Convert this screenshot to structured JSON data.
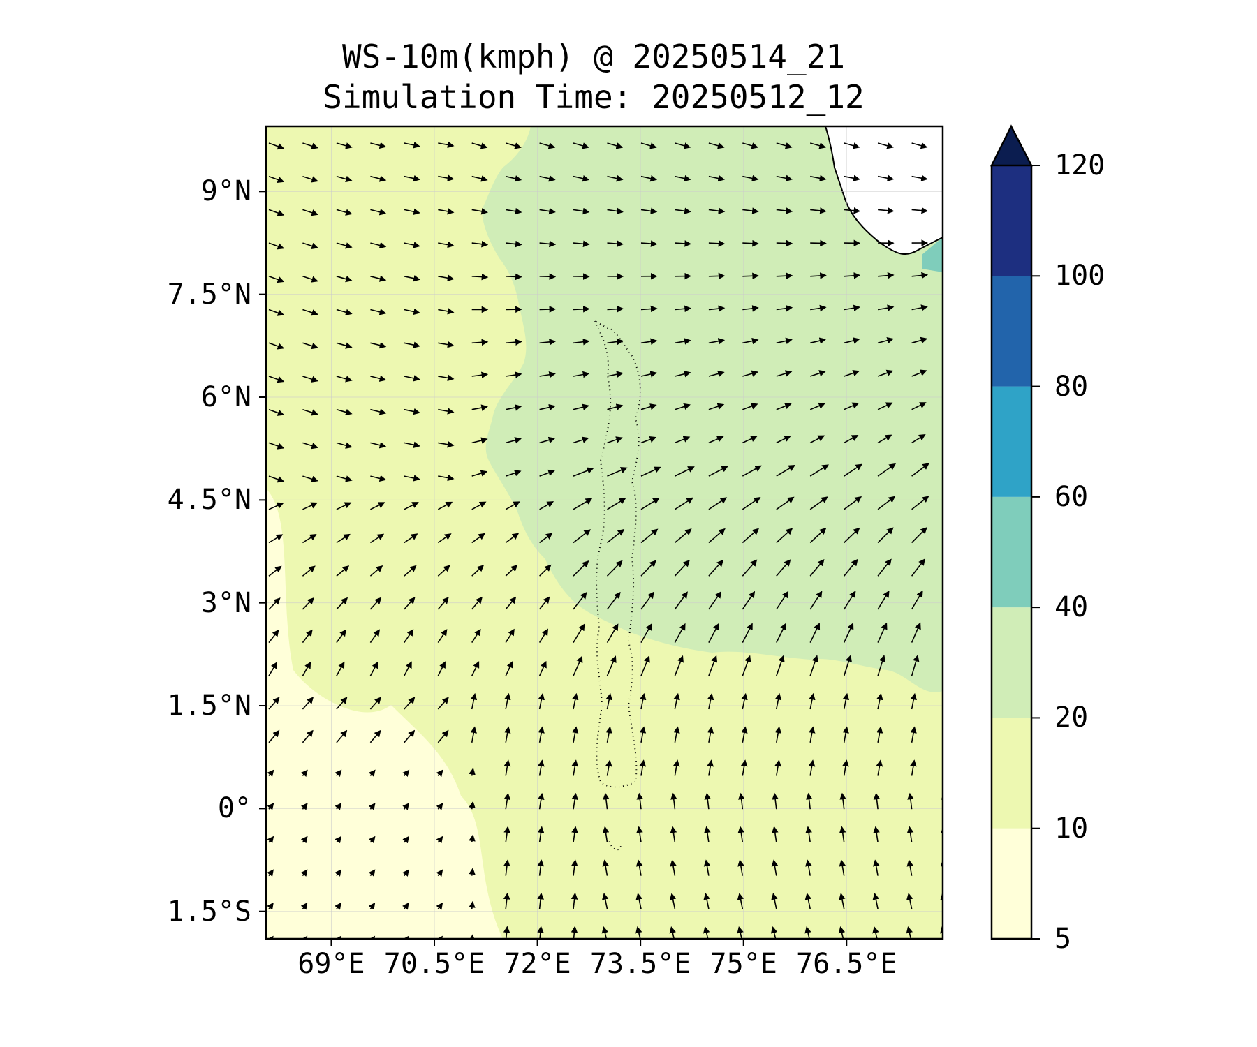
{
  "title": {
    "line1": "WS-10m(kmph) @ 20250514_21",
    "line2": "Simulation Time: 20250512_12"
  },
  "map": {
    "latitude_ticks": [
      {
        "label": "9°N",
        "value": 9.0
      },
      {
        "label": "7.5°N",
        "value": 7.5
      },
      {
        "label": "6°N",
        "value": 6.0
      },
      {
        "label": "4.5°N",
        "value": 4.5
      },
      {
        "label": "3°N",
        "value": 3.0
      },
      {
        "label": "1.5°N",
        "value": 1.5
      },
      {
        "label": "0°",
        "value": 0.0
      },
      {
        "label": "1.5°S",
        "value": -1.5
      }
    ],
    "longitude_ticks": [
      {
        "label": "69°E",
        "value": 69.0
      },
      {
        "label": "70.5°E",
        "value": 70.5
      },
      {
        "label": "72°E",
        "value": 72.0
      },
      {
        "label": "73.5°E",
        "value": 73.5
      },
      {
        "label": "75°E",
        "value": 75.0
      },
      {
        "label": "76.5°E",
        "value": 76.5
      }
    ],
    "lon_range": [
      68.05,
      77.9
    ],
    "lat_range": [
      -1.9,
      9.95
    ],
    "colors": {
      "5-10": "#ffffd9",
      "10-20": "#edf8b1",
      "20-40": "#d0edb7",
      "40-60": "#7fcdbb",
      "60-80": "#2fa3c7",
      "80-100": "#2264ab",
      "100-120": "#1d2f80",
      ">120": "#0b1d50"
    }
  },
  "colorbar": {
    "ticks": [
      "5",
      "10",
      "20",
      "40",
      "60",
      "80",
      "100",
      "120"
    ],
    "colors": [
      "#ffffd9",
      "#edf8b1",
      "#d0edb7",
      "#7fcdbb",
      "#2fa3c7",
      "#2264ab",
      "#1d2f80"
    ],
    "extend_color": "#0b1d50",
    "extend": "max"
  }
}
